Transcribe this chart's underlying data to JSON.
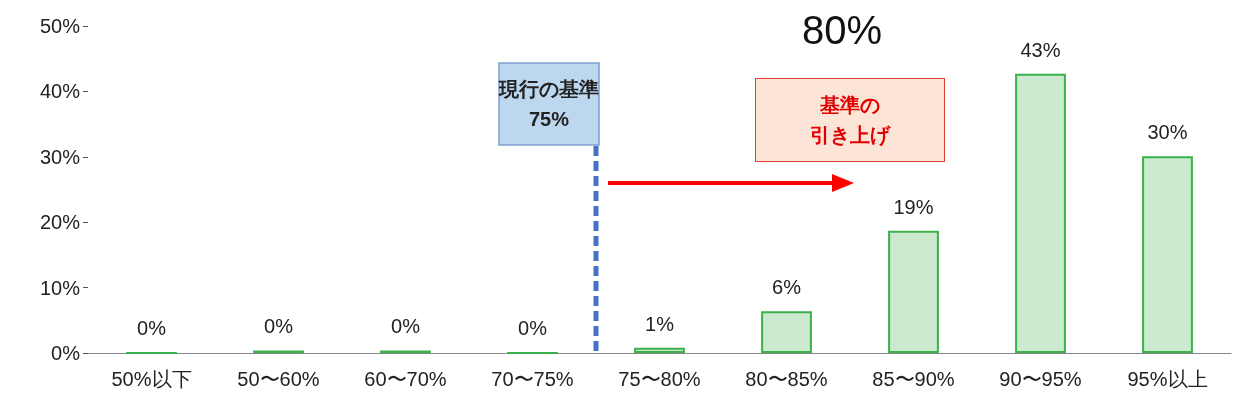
{
  "chart_data": {
    "type": "bar",
    "categories": [
      "50%以下",
      "50〜60%",
      "60〜70%",
      "70〜75%",
      "75〜80%",
      "80〜85%",
      "85〜90%",
      "90〜95%",
      "95%以上"
    ],
    "values": [
      0,
      0.4,
      0.4,
      0,
      0.8,
      6.4,
      18.7,
      42.7,
      30.1
    ],
    "value_labels": [
      "0%",
      "0%",
      "0%",
      "0%",
      "1%",
      "6%",
      "19%",
      "43%",
      "30%"
    ],
    "color": "#3cb04a",
    "ylim": [
      0,
      50
    ],
    "yticks": [
      {
        "value": 0,
        "label": "0%"
      },
      {
        "value": 10,
        "label": "10%"
      },
      {
        "value": 20,
        "label": "20%"
      },
      {
        "value": 30,
        "label": "30%"
      },
      {
        "value": 40,
        "label": "40%"
      },
      {
        "value": 50,
        "label": "50%"
      }
    ],
    "grid": false,
    "ref_lines": [
      {
        "axis": "x",
        "value": "75〜80%",
        "label": "現行の基準\n75%",
        "color": "#4472c4",
        "line_style": "dashed"
      }
    ],
    "annotations": [
      "80%",
      "基準の引き上げ"
    ]
  }
}
